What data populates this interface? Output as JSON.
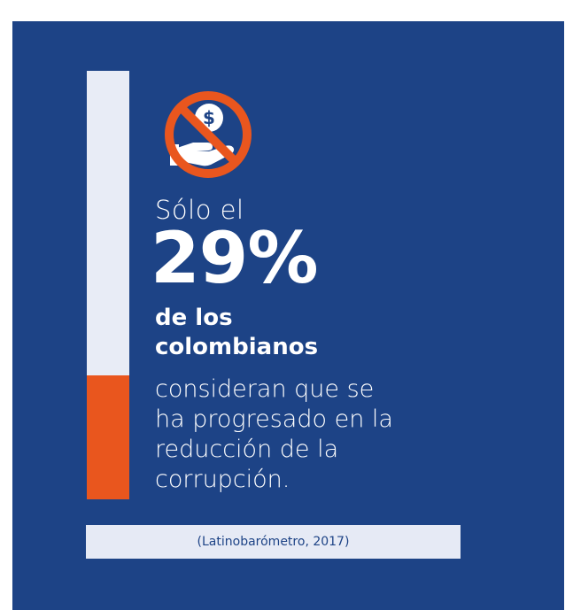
{
  "infographic": {
    "icon_name": "no-bribe-icon",
    "lead": "Sólo el",
    "percent_text": "29%",
    "percent_value": 29,
    "bold_lines": [
      "de los",
      "colombianos"
    ],
    "rest_lines": [
      "consideran que se",
      "ha progresado en la",
      "reducción de la",
      "corrupción."
    ],
    "source": "(Latinobarómetro, 2017)",
    "colors": {
      "background": "#1d4386",
      "accent": "#e9561e",
      "light": "#e8ecf6",
      "text": "#ffffff"
    }
  }
}
